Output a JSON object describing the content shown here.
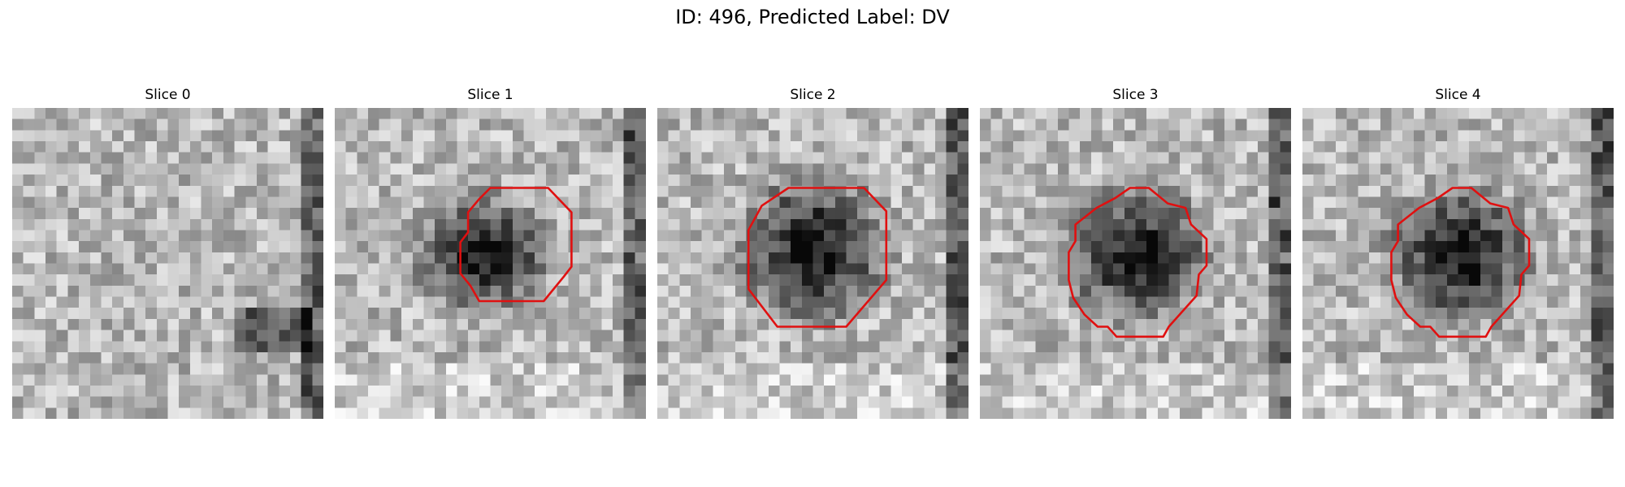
{
  "figure": {
    "title": "ID: 496, Predicted Label: DV"
  },
  "slices": [
    {
      "label": "Slice 0",
      "has_contour": false
    },
    {
      "label": "Slice 1",
      "has_contour": true
    },
    {
      "label": "Slice 2",
      "has_contour": true
    },
    {
      "label": "Slice 3",
      "has_contour": true
    },
    {
      "label": "Slice 4",
      "has_contour": true
    }
  ],
  "contour_color": "#e01010",
  "colormap": "gray"
}
